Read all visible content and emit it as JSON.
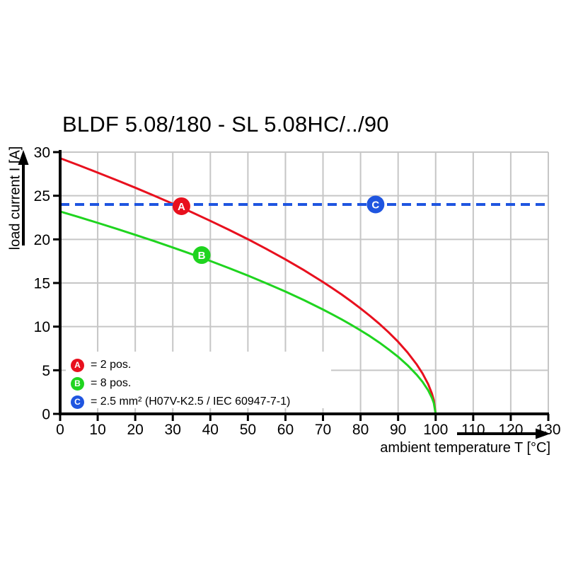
{
  "chart_data": {
    "type": "line",
    "title": "BLDF 5.08/180 - SL 5.08HC/../90",
    "xlabel": "ambient temperature T [°C]",
    "ylabel": "load current I [A]",
    "xlim": [
      0,
      130
    ],
    "ylim": [
      0,
      30
    ],
    "x_ticks": [
      0,
      10,
      20,
      30,
      40,
      50,
      60,
      70,
      80,
      90,
      100,
      110,
      120,
      130
    ],
    "y_ticks": [
      0,
      5,
      10,
      15,
      20,
      25,
      30
    ],
    "grid": true,
    "colors": {
      "red": "#e8101e",
      "green": "#1fd41f",
      "blue": "#1f55e0",
      "grid": "#c6c6c6",
      "axis": "#000000",
      "marker_letter": "#ffffff"
    },
    "series": [
      {
        "name": "A",
        "label": "2 pos.",
        "color": "#e8101e",
        "style": "solid",
        "points": [
          [
            0,
            29.3
          ],
          [
            5,
            28.49
          ],
          [
            10,
            27.65
          ],
          [
            15,
            26.8
          ],
          [
            20,
            25.92
          ],
          [
            25,
            25.01
          ],
          [
            30,
            24.08
          ],
          [
            35,
            23.12
          ],
          [
            40,
            22.12
          ],
          [
            45,
            21.09
          ],
          [
            50,
            20.02
          ],
          [
            55,
            18.88
          ],
          [
            60,
            17.7
          ],
          [
            65,
            16.45
          ],
          [
            70,
            15.11
          ],
          [
            72.5,
            14.4
          ],
          [
            75,
            13.67
          ],
          [
            77.5,
            12.9
          ],
          [
            80,
            12.09
          ],
          [
            82.5,
            11.23
          ],
          [
            85,
            10.32
          ],
          [
            87.5,
            9.34
          ],
          [
            90,
            8.26
          ],
          [
            92.5,
            7.05
          ],
          [
            95,
            5.64
          ],
          [
            96.5,
            4.64
          ],
          [
            98,
            3.41
          ],
          [
            99,
            2.33
          ],
          [
            99.5,
            1.59
          ],
          [
            100,
            0
          ]
        ]
      },
      {
        "name": "B",
        "label": "8 pos.",
        "color": "#1fd41f",
        "style": "solid",
        "points": [
          [
            0,
            23.2
          ],
          [
            5,
            22.56
          ],
          [
            10,
            21.89
          ],
          [
            15,
            21.22
          ],
          [
            20,
            20.52
          ],
          [
            25,
            19.81
          ],
          [
            30,
            19.07
          ],
          [
            35,
            18.31
          ],
          [
            40,
            17.52
          ],
          [
            45,
            16.7
          ],
          [
            50,
            15.85
          ],
          [
            55,
            14.95
          ],
          [
            60,
            14.02
          ],
          [
            65,
            13.02
          ],
          [
            70,
            11.96
          ],
          [
            72.5,
            11.4
          ],
          [
            75,
            10.82
          ],
          [
            77.5,
            10.21
          ],
          [
            80,
            9.57
          ],
          [
            82.5,
            8.9
          ],
          [
            85,
            8.17
          ],
          [
            87.5,
            7.39
          ],
          [
            90,
            6.54
          ],
          [
            92.5,
            5.58
          ],
          [
            95,
            4.47
          ],
          [
            96.5,
            3.67
          ],
          [
            98,
            2.7
          ],
          [
            99,
            1.84
          ],
          [
            99.5,
            1.26
          ],
          [
            100,
            0
          ]
        ]
      },
      {
        "name": "C",
        "label": "2.5 mm² (H07V-K2.5 / IEC 60947-7-1)",
        "color": "#1f55e0",
        "style": "dashed",
        "points": [
          [
            0,
            24
          ],
          [
            130,
            24
          ]
        ]
      }
    ],
    "markers": [
      {
        "letter": "A",
        "color": "#e8101e",
        "t": 32.3,
        "i": 23.8
      },
      {
        "letter": "B",
        "color": "#1fd41f",
        "t": 37.7,
        "i": 18.2
      },
      {
        "letter": "C",
        "color": "#1f55e0",
        "t": 84,
        "i": 24
      }
    ],
    "legend": {
      "position": "bottom-left",
      "items": [
        {
          "letter": "A",
          "color": "#e8101e",
          "text": "= 2 pos."
        },
        {
          "letter": "B",
          "color": "#1fd41f",
          "text": "= 8 pos."
        },
        {
          "letter": "C",
          "color": "#1f55e0",
          "text": "= 2.5 mm² (H07V-K2.5 / IEC 60947-7-1)"
        }
      ]
    }
  }
}
